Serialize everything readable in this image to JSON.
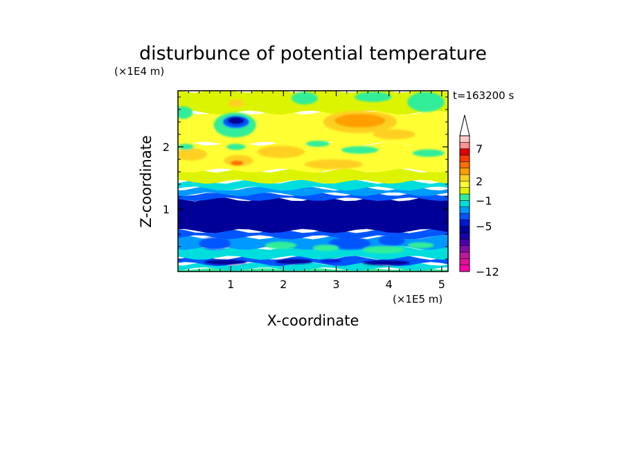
{
  "chart_data": {
    "type": "heatmap",
    "title": "disturbunce of potential temperature",
    "xlabel": "X-coordinate",
    "ylabel": "Z-coordinate",
    "x_scale_label": "(×1E5 m)",
    "y_scale_label": "(×1E4 m)",
    "time_label": "t=163200 s",
    "xlim": [
      0,
      5.12
    ],
    "ylim": [
      0,
      2.9
    ],
    "xticks": [
      1,
      2,
      3,
      4,
      5
    ],
    "xtick_labels": [
      "1",
      "2",
      "3",
      "4",
      "5"
    ],
    "yticks": [
      1,
      2
    ],
    "ytick_labels": [
      "1",
      "2"
    ],
    "colorbar": {
      "levels": [
        -12,
        -11,
        -10,
        -9,
        -8,
        -7,
        -6,
        -5,
        -4,
        -3,
        -2,
        -1,
        0,
        1,
        2,
        3,
        4,
        5,
        6,
        7,
        8,
        9
      ],
      "colors": [
        "#ff00aa",
        "#e0109a",
        "#b81c9a",
        "#800fa8",
        "#4a00b0",
        "#1600b0",
        "#000099",
        "#0018d8",
        "#0055ff",
        "#0099ff",
        "#00dddd",
        "#33ee99",
        "#ddf400",
        "#ffff33",
        "#ffd020",
        "#ffa000",
        "#ff7000",
        "#ff3c00",
        "#e00000",
        "#ff9090",
        "#ffc8c8",
        "#ffffff"
      ],
      "tick_values": [
        -12,
        -5,
        -1,
        2,
        7
      ],
      "tick_labels": [
        "−12",
        "−5",
        "−1",
        "2",
        "7"
      ],
      "extend": "max"
    },
    "bands": [
      {
        "z0": 0.0,
        "z1": 0.04,
        "value": -1
      },
      {
        "z0": 0.04,
        "z1": 0.12,
        "value": -2
      },
      {
        "z0": 0.12,
        "z1": 0.22,
        "value": -4
      },
      {
        "z0": 0.22,
        "z1": 0.38,
        "value": -2
      },
      {
        "z0": 0.38,
        "z1": 0.55,
        "value": -3
      },
      {
        "z0": 0.55,
        "z1": 0.65,
        "value": -4
      },
      {
        "z0": 0.65,
        "z1": 1.16,
        "value": -6
      },
      {
        "z0": 1.16,
        "z1": 1.24,
        "value": -4
      },
      {
        "z0": 1.24,
        "z1": 1.33,
        "value": -3
      },
      {
        "z0": 1.33,
        "z1": 1.44,
        "value": -2
      },
      {
        "z0": 1.44,
        "z1": 1.62,
        "value": 0
      },
      {
        "z0": 1.62,
        "z1": 2.05,
        "value": 1
      },
      {
        "z0": 2.05,
        "z1": 2.55,
        "value": 1
      },
      {
        "z0": 2.55,
        "z1": 2.9,
        "value": 0
      }
    ],
    "blobs": [
      {
        "x": 0.25,
        "z": 1.88,
        "rx": 0.3,
        "rz": 0.1,
        "value": 2
      },
      {
        "x": 1.15,
        "z": 1.78,
        "rx": 0.28,
        "rz": 0.09,
        "value": 2
      },
      {
        "x": 1.12,
        "z": 1.74,
        "rx": 0.12,
        "rz": 0.04,
        "value": 4
      },
      {
        "x": 1.95,
        "z": 1.92,
        "rx": 0.45,
        "rz": 0.1,
        "value": 2
      },
      {
        "x": 2.95,
        "z": 1.72,
        "rx": 0.55,
        "rz": 0.08,
        "value": 2
      },
      {
        "x": 3.45,
        "z": 2.4,
        "rx": 0.7,
        "rz": 0.18,
        "value": 2
      },
      {
        "x": 3.45,
        "z": 2.42,
        "rx": 0.48,
        "rz": 0.11,
        "value": 3
      },
      {
        "x": 4.1,
        "z": 2.2,
        "rx": 0.4,
        "rz": 0.08,
        "value": 2
      },
      {
        "x": 1.08,
        "z": 2.35,
        "rx": 0.4,
        "rz": 0.2,
        "value": -1
      },
      {
        "x": 1.1,
        "z": 2.4,
        "rx": 0.25,
        "rz": 0.1,
        "value": -4
      },
      {
        "x": 1.1,
        "z": 2.42,
        "rx": 0.16,
        "rz": 0.06,
        "value": -6
      },
      {
        "x": 1.1,
        "z": 2.0,
        "rx": 0.18,
        "rz": 0.05,
        "value": -1
      },
      {
        "x": 1.1,
        "z": 2.7,
        "rx": 0.15,
        "rz": 0.06,
        "value": 2
      },
      {
        "x": 0.1,
        "z": 2.55,
        "rx": 0.18,
        "rz": 0.1,
        "value": -1
      },
      {
        "x": 0.15,
        "z": 2.0,
        "rx": 0.15,
        "rz": 0.05,
        "value": -1
      },
      {
        "x": 2.4,
        "z": 2.78,
        "rx": 0.25,
        "rz": 0.1,
        "value": -1
      },
      {
        "x": 3.7,
        "z": 2.8,
        "rx": 0.35,
        "rz": 0.08,
        "value": -1
      },
      {
        "x": 4.7,
        "z": 2.72,
        "rx": 0.35,
        "rz": 0.16,
        "value": -1
      },
      {
        "x": 3.45,
        "z": 1.95,
        "rx": 0.35,
        "rz": 0.06,
        "value": -1
      },
      {
        "x": 4.75,
        "z": 1.9,
        "rx": 0.3,
        "rz": 0.06,
        "value": -1
      },
      {
        "x": 2.65,
        "z": 2.05,
        "rx": 0.22,
        "rz": 0.05,
        "value": -1
      },
      {
        "x": 0.7,
        "z": 0.45,
        "rx": 0.3,
        "rz": 0.1,
        "value": -4
      },
      {
        "x": 3.25,
        "z": 0.45,
        "rx": 0.4,
        "rz": 0.1,
        "value": -4
      },
      {
        "x": 4.05,
        "z": 0.5,
        "rx": 0.25,
        "rz": 0.09,
        "value": -4
      },
      {
        "x": 1.95,
        "z": 0.42,
        "rx": 0.3,
        "rz": 0.06,
        "value": -1
      },
      {
        "x": 2.8,
        "z": 0.38,
        "rx": 0.25,
        "rz": 0.05,
        "value": -1
      },
      {
        "x": 3.9,
        "z": 0.35,
        "rx": 0.4,
        "rz": 0.06,
        "value": -1
      },
      {
        "x": 4.6,
        "z": 0.42,
        "rx": 0.25,
        "rz": 0.05,
        "value": -1
      },
      {
        "x": 0.9,
        "z": 0.15,
        "rx": 0.4,
        "rz": 0.04,
        "value": -6
      },
      {
        "x": 2.2,
        "z": 0.16,
        "rx": 0.35,
        "rz": 0.04,
        "value": -6
      },
      {
        "x": 3.95,
        "z": 0.14,
        "rx": 0.45,
        "rz": 0.04,
        "value": -6
      },
      {
        "x": 2.9,
        "z": 0.17,
        "rx": 0.2,
        "rz": 0.03,
        "value": -5
      }
    ]
  }
}
